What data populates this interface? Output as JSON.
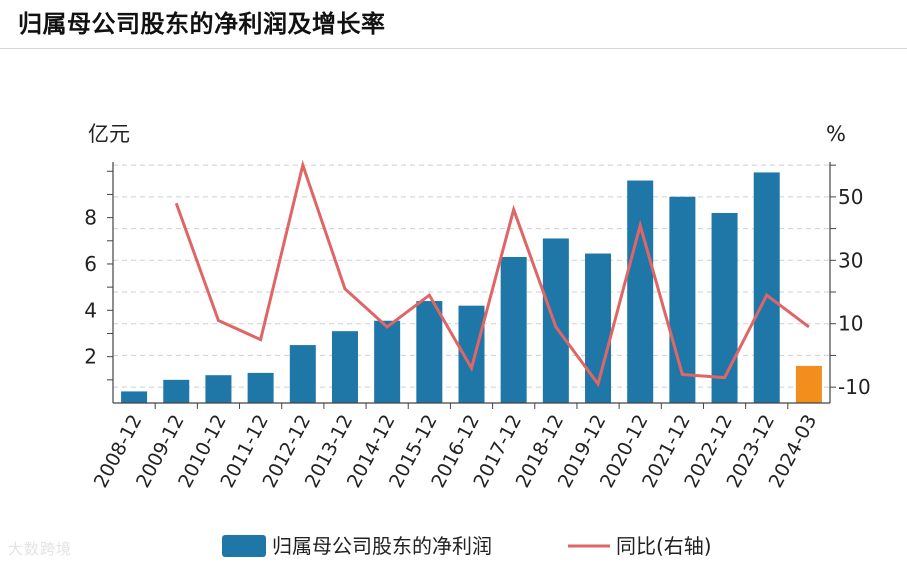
{
  "title": "归属母公司股东的净利润及增长率",
  "watermark": "大数跨境",
  "colors": {
    "bar": "#1f77a8",
    "bar_highlight": "#f28e1c",
    "line": "#e06666",
    "grid": "#cfcfcf",
    "axis": "#444444"
  },
  "chart_data": {
    "type": "bar",
    "categories": [
      "2008-12",
      "2009-12",
      "2010-12",
      "2011-12",
      "2012-12",
      "2013-12",
      "2014-12",
      "2015-12",
      "2016-12",
      "2017-12",
      "2018-12",
      "2019-12",
      "2020-12",
      "2021-12",
      "2022-12",
      "2023-12",
      "2024-03"
    ],
    "left_axis": {
      "unit": "亿元",
      "ylim": [
        0,
        10.4
      ],
      "ticks": [
        2,
        4,
        6,
        8
      ]
    },
    "right_axis": {
      "unit": "%",
      "ylim": [
        -15,
        61
      ],
      "ticks": [
        -10,
        10,
        30,
        50
      ]
    },
    "series": [
      {
        "name": "归属母公司股东的净利润",
        "type": "bar",
        "axis": "left",
        "highlight_index": 16,
        "values": [
          0.5,
          1.0,
          1.2,
          1.3,
          2.5,
          3.1,
          3.55,
          4.4,
          4.2,
          6.3,
          7.1,
          6.45,
          9.6,
          8.9,
          8.2,
          9.95,
          1.6
        ]
      },
      {
        "name": "同比(右轴)",
        "type": "line",
        "axis": "right",
        "values": [
          null,
          48,
          11,
          5,
          60,
          21,
          9,
          19,
          -4,
          46,
          9,
          -9,
          41,
          -6,
          -7,
          19,
          9
        ]
      }
    ],
    "grid": true,
    "legend_position": "bottom"
  }
}
